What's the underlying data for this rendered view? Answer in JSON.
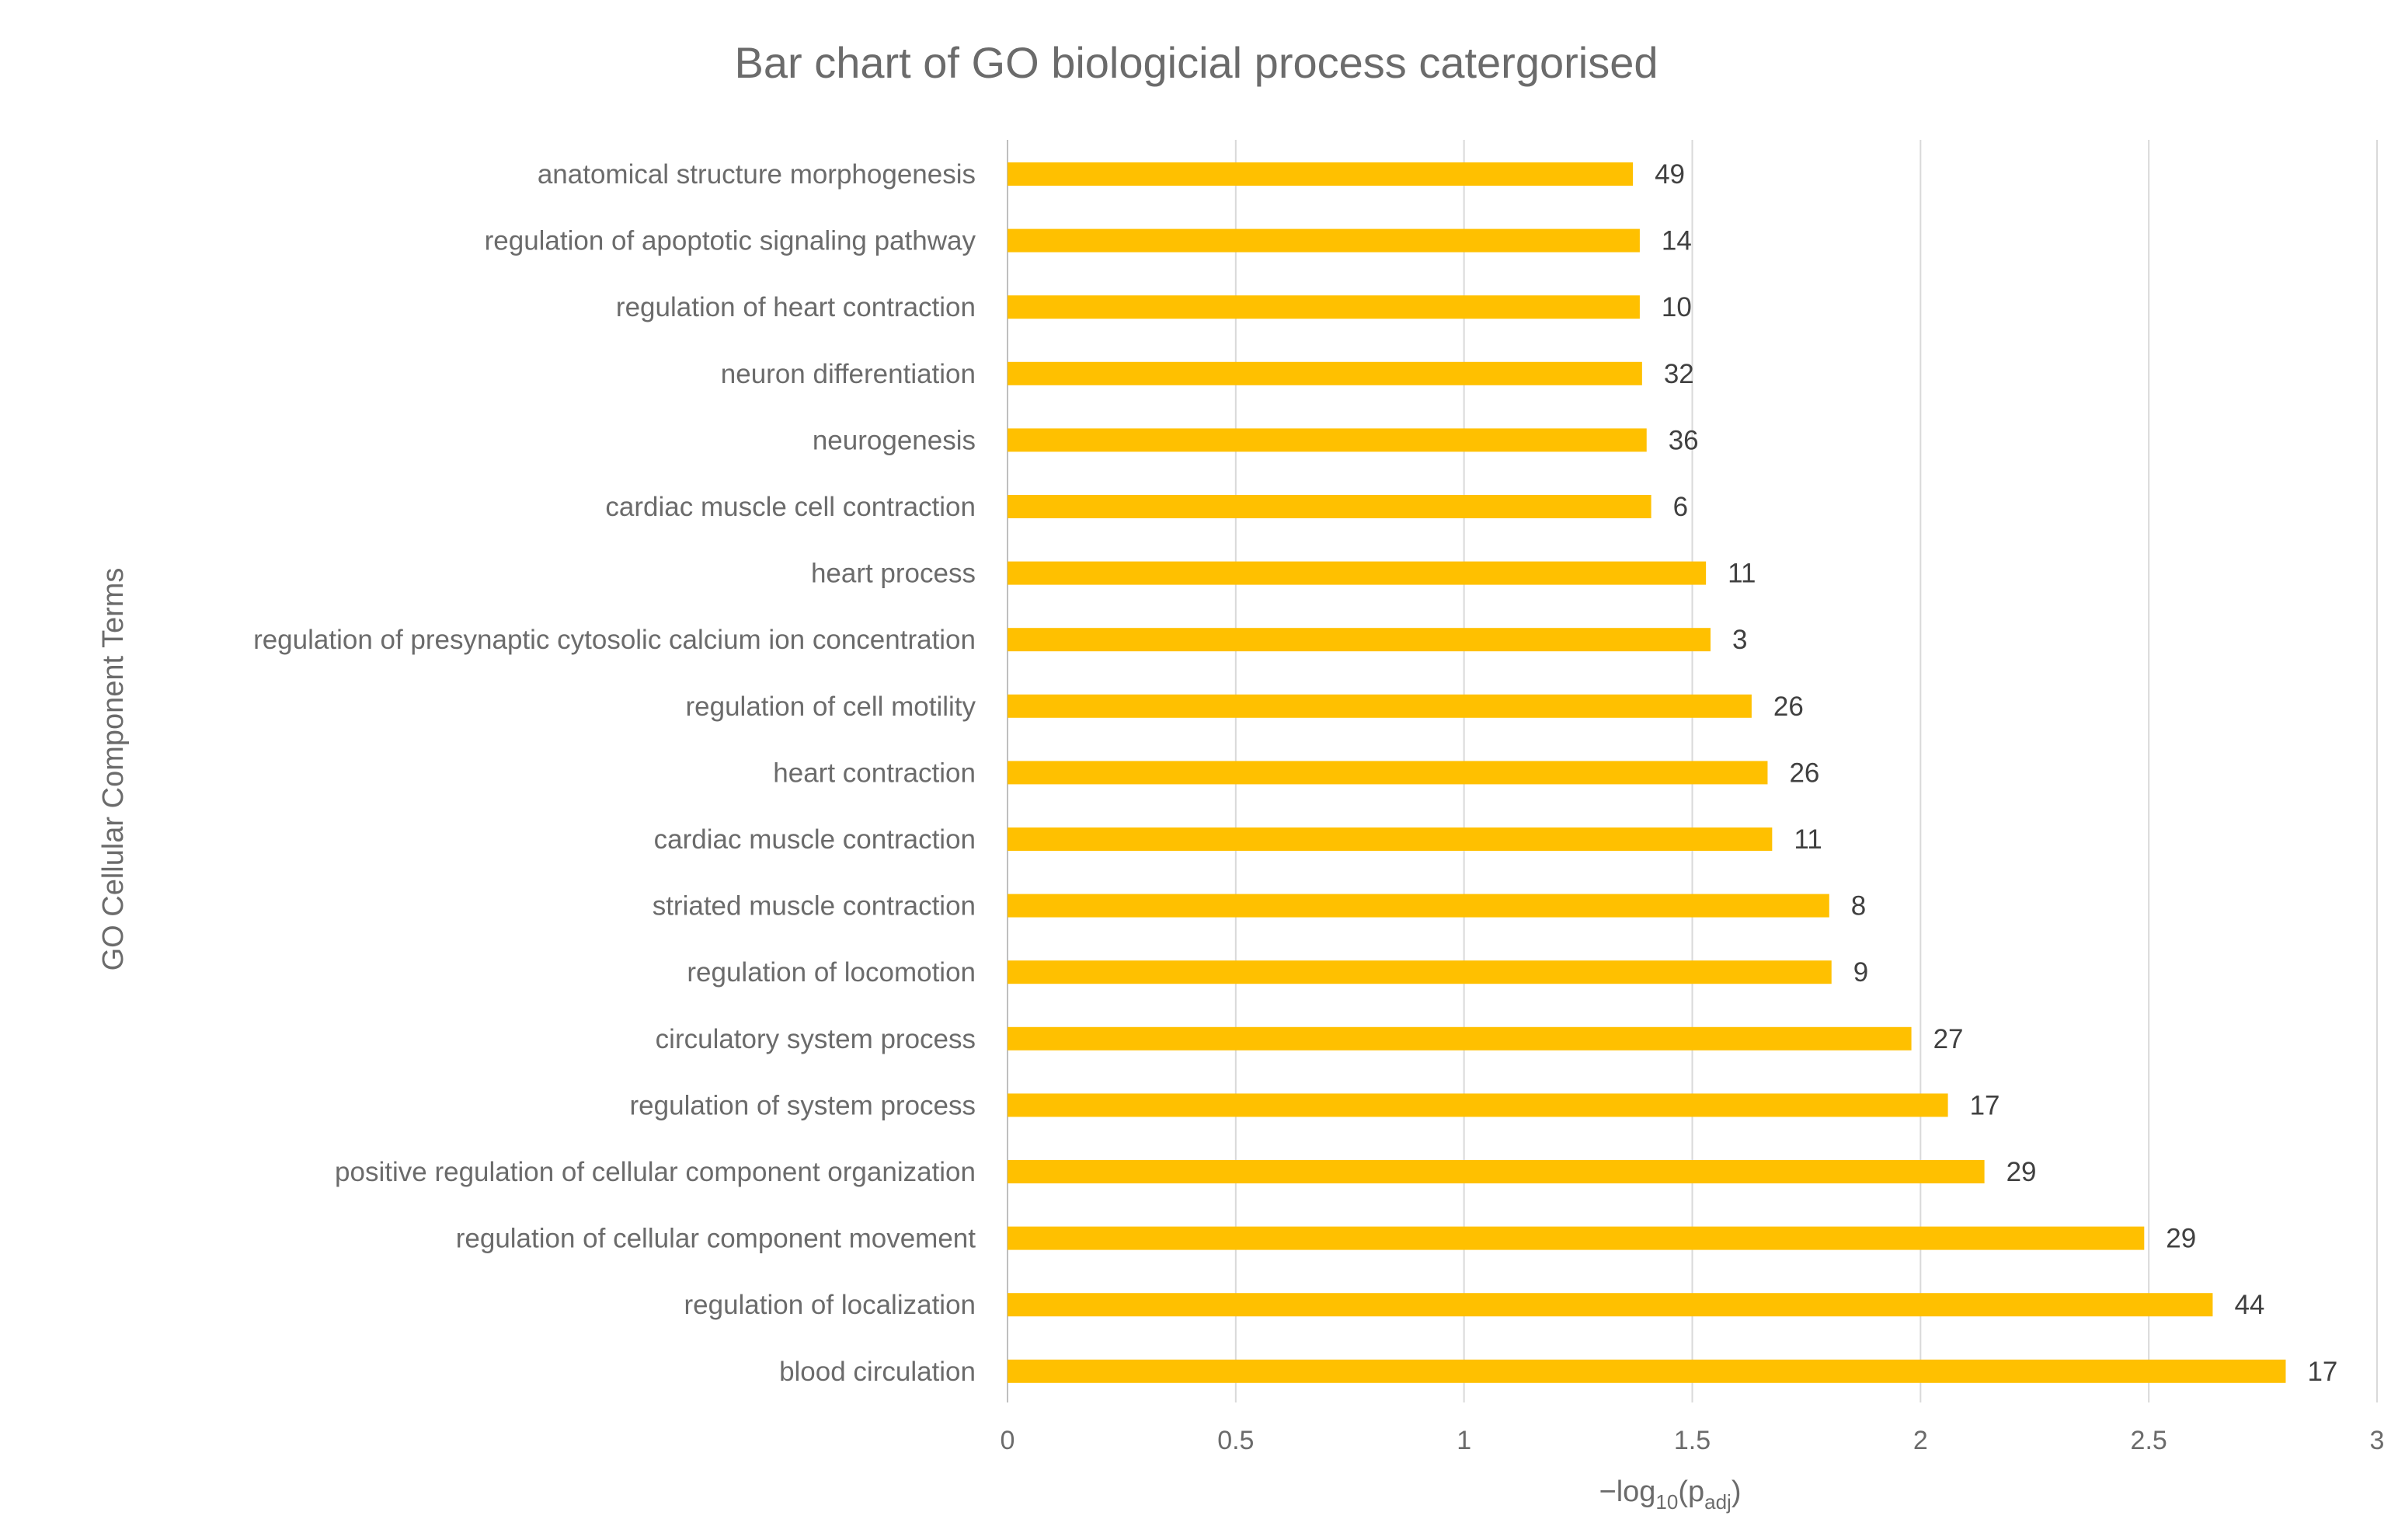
{
  "chart_data": {
    "type": "bar",
    "orientation": "horizontal",
    "title": "Bar chart of GO biologicial process catergorised",
    "xlabel_main": "−log",
    "xlabel_sub": "10",
    "xlabel_paren_open": "(p",
    "xlabel_sub2": "adj",
    "xlabel_paren_close": ")",
    "ylabel": "GO Cellular Component Terms",
    "xlim": [
      0,
      3
    ],
    "xticks": [
      "0",
      "0.5",
      "1",
      "1.5",
      "2",
      "2.5",
      "3"
    ],
    "grid": true,
    "legend": "none",
    "bar_color": "#FFC000",
    "categories": [
      "anatomical structure morphogenesis",
      "regulation of apoptotic signaling pathway",
      "regulation of heart contraction",
      "neuron differentiation",
      "neurogenesis",
      "cardiac muscle cell contraction",
      "heart process",
      "regulation of presynaptic cytosolic calcium ion concentration",
      "regulation of cell motility",
      "heart contraction",
      "cardiac muscle contraction",
      "striated muscle contraction",
      "regulation of locomotion",
      "circulatory system process",
      "regulation of system process",
      "positive regulation of cellular component organization",
      "regulation of cellular component movement",
      "regulation of localization",
      "blood circulation"
    ],
    "values": [
      1.37,
      1.385,
      1.385,
      1.39,
      1.4,
      1.41,
      1.53,
      1.54,
      1.63,
      1.665,
      1.675,
      1.8,
      1.805,
      1.98,
      2.06,
      2.14,
      2.49,
      2.64,
      2.8
    ],
    "data_labels": [
      "49",
      "14",
      "10",
      "32",
      "36",
      "6",
      "11",
      "3",
      "26",
      "26",
      "11",
      "8",
      "9",
      "27",
      "17",
      "29",
      "29",
      "44",
      "17"
    ]
  }
}
